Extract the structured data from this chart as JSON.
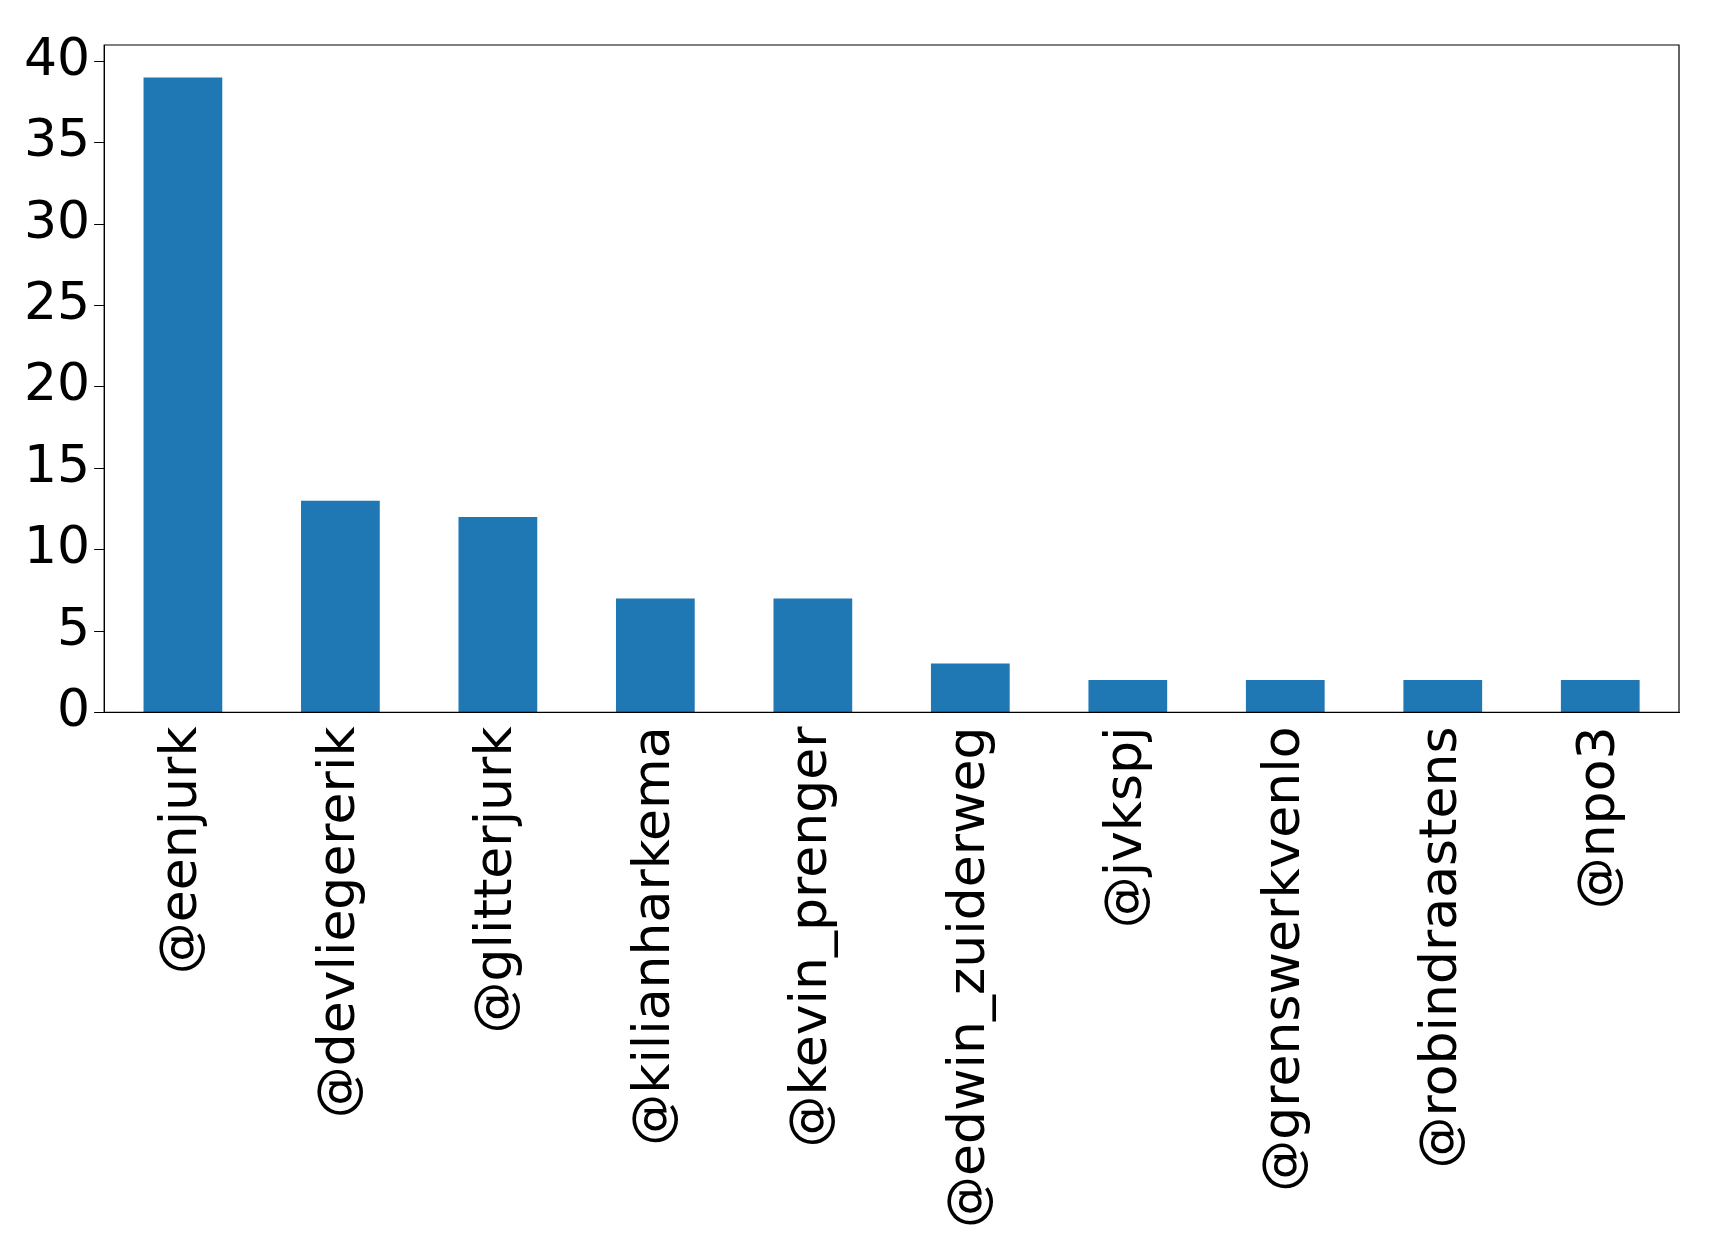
{
  "chart_data": {
    "type": "bar",
    "categories": [
      "@eenjurk",
      "@devliegererik",
      "@glitterjurk",
      "@kilianharkema",
      "@kevin_prenger",
      "@edwin_zuiderweg",
      "@jvkspj",
      "@grenswerkvenlo",
      "@robindraastens",
      "@npo3"
    ],
    "values": [
      39,
      13,
      12,
      7,
      7,
      3,
      2,
      2,
      2,
      2
    ],
    "color": "#1f77b4",
    "ylim": [
      0,
      41
    ],
    "yticks": [
      0,
      5,
      10,
      15,
      20,
      25,
      30,
      35,
      40
    ],
    "grid": false,
    "legend": false
  }
}
